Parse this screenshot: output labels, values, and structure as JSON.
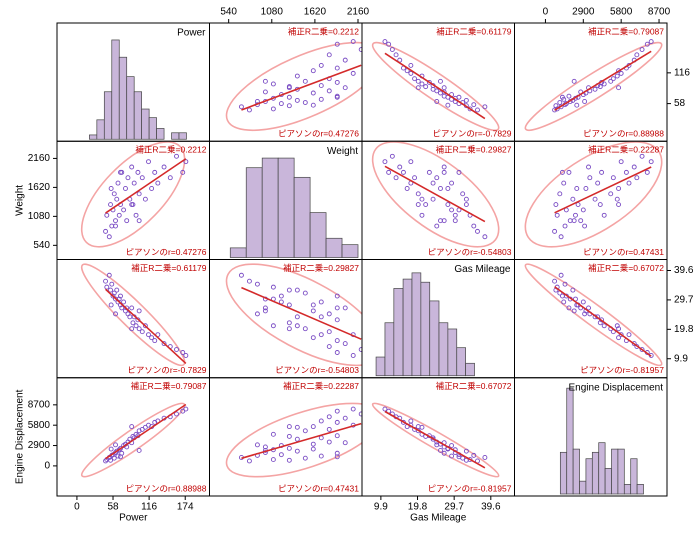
{
  "chart_data": {
    "type": "scatter_matrix",
    "variables": [
      {
        "name": "Power",
        "xlim": [
          -32,
          213
        ],
        "ylim": [
          -13,
          210
        ],
        "xticks": [
          0,
          58,
          116,
          174
        ],
        "yticks": [
          58,
          116
        ],
        "values": [
          46,
          48,
          52,
          54,
          56,
          58,
          60,
          62,
          64,
          66,
          68,
          70,
          72,
          75,
          78,
          80,
          82,
          85,
          88,
          90,
          92,
          95,
          98,
          100,
          105,
          110,
          115,
          120,
          125,
          130,
          140,
          150,
          160,
          170,
          175,
          62,
          70,
          88,
          100,
          55
        ],
        "hist": {
          "bins": [
            20,
            32,
            44,
            56,
            68,
            80,
            92,
            104,
            116,
            128,
            140,
            152,
            164,
            176
          ],
          "counts": [
            2,
            9,
            22,
            46,
            38,
            29,
            22,
            14,
            10,
            5,
            0,
            3,
            3
          ],
          "ylim": [
            0,
            52
          ]
        }
      },
      {
        "name": "Weight",
        "xlim": [
          300,
          2210
        ],
        "ylim": [
          276,
          2480
        ],
        "xticks": [
          540,
          1080,
          1620,
          2160
        ],
        "yticks": [
          540,
          1080,
          1620,
          2160
        ],
        "values": [
          800,
          1100,
          700,
          1300,
          900,
          1200,
          1500,
          1000,
          1400,
          1700,
          1100,
          1300,
          1900,
          1200,
          1600,
          1000,
          1800,
          1400,
          2000,
          1300,
          1700,
          1100,
          1900,
          1500,
          1800,
          1400,
          2100,
          1600,
          1900,
          1700,
          2000,
          1800,
          2200,
          1900,
          2100,
          900,
          1900,
          1300,
          1000,
          1600
        ],
        "hist": {
          "bins": [
            560,
            760,
            960,
            1160,
            1360,
            1560,
            1760,
            1960,
            2160
          ],
          "counts": [
            3,
            28,
            31,
            31,
            25,
            14,
            6,
            4
          ],
          "ylim": [
            0,
            35
          ]
        }
      },
      {
        "name": "Gas Mileage",
        "xlim": [
          4.8,
          46
        ],
        "ylim": [
          3.5,
          43.3
        ],
        "xticks": [
          9.9,
          19.8,
          29.7,
          39.6
        ],
        "yticks": [
          9.9,
          19.8,
          29.7,
          39.6
        ],
        "values": [
          36,
          34,
          38,
          33,
          35,
          31,
          32,
          30,
          33,
          29,
          30,
          28,
          27,
          29,
          26,
          27,
          25,
          24,
          27,
          22,
          24,
          21,
          23,
          20,
          19,
          21,
          18,
          17,
          16,
          18,
          15,
          14,
          13,
          12,
          11,
          25,
          31,
          20,
          26,
          28
        ],
        "hist": {
          "bins": [
            8.6,
            11.0,
            13.4,
            15.9,
            18.3,
            20.7,
            23.1,
            25.6,
            28.0,
            30.4,
            32.8,
            35.2
          ],
          "counts": [
            6,
            17,
            28,
            31,
            33,
            30,
            24,
            17,
            15,
            9,
            4
          ],
          "ylim": [
            0,
            36
          ]
        }
      },
      {
        "name": "Engine Displacement",
        "xlim": [
          -2370,
          9310
        ],
        "ylim": [
          -4290,
          12560
        ],
        "xticks": [
          0,
          2900,
          5800,
          8700
        ],
        "yticks": [
          0,
          2900,
          5800,
          8700
        ],
        "values": [
          700,
          900,
          1200,
          800,
          1500,
          1600,
          1100,
          1900,
          2100,
          1400,
          2300,
          2500,
          1800,
          2900,
          3100,
          2700,
          3400,
          3800,
          3300,
          4200,
          4000,
          4500,
          4300,
          5000,
          5200,
          5500,
          5800,
          5600,
          6200,
          6400,
          6800,
          7000,
          7400,
          7800,
          8100,
          3000,
          1300,
          5600,
          2200,
          2400
        ],
        "hist": {
          "bins": [
            1140,
            1630,
            2120,
            2610,
            3100,
            3590,
            4080,
            4570,
            5060,
            5550,
            6040,
            6530,
            7020,
            7510
          ],
          "counts": [
            13,
            33,
            14,
            4,
            11,
            13,
            16,
            8,
            14,
            14,
            3,
            11,
            3
          ],
          "ylim": [
            0,
            35
          ]
        }
      }
    ],
    "pairs": [
      {
        "vars": [
          0,
          1
        ],
        "adj_r2": "補正R二乗=0.2212",
        "pearson": "ピアソンのr=0.47276"
      },
      {
        "vars": [
          0,
          2
        ],
        "adj_r2": "補正R二乗=0.61179",
        "pearson": "ピアソンのr=-0.7829"
      },
      {
        "vars": [
          0,
          3
        ],
        "adj_r2": "補正R二乗=0.79087",
        "pearson": "ピアソンのr=0.88988"
      },
      {
        "vars": [
          1,
          2
        ],
        "adj_r2": "補正R二乗=0.29827",
        "pearson": "ピアソンのr=-0.54803"
      },
      {
        "vars": [
          1,
          3
        ],
        "adj_r2": "補正R二乗=0.22287",
        "pearson": "ピアソンのr=0.47431"
      },
      {
        "vars": [
          2,
          3
        ],
        "adj_r2": "補正R二乗=0.67072",
        "pearson": "ピアソンのr=-0.81957"
      }
    ],
    "point_color": "#7a4cc4",
    "line_color": "#d42a2a",
    "ellipse_color": "#f4a4a4",
    "hist_color": "#c9b6da"
  }
}
